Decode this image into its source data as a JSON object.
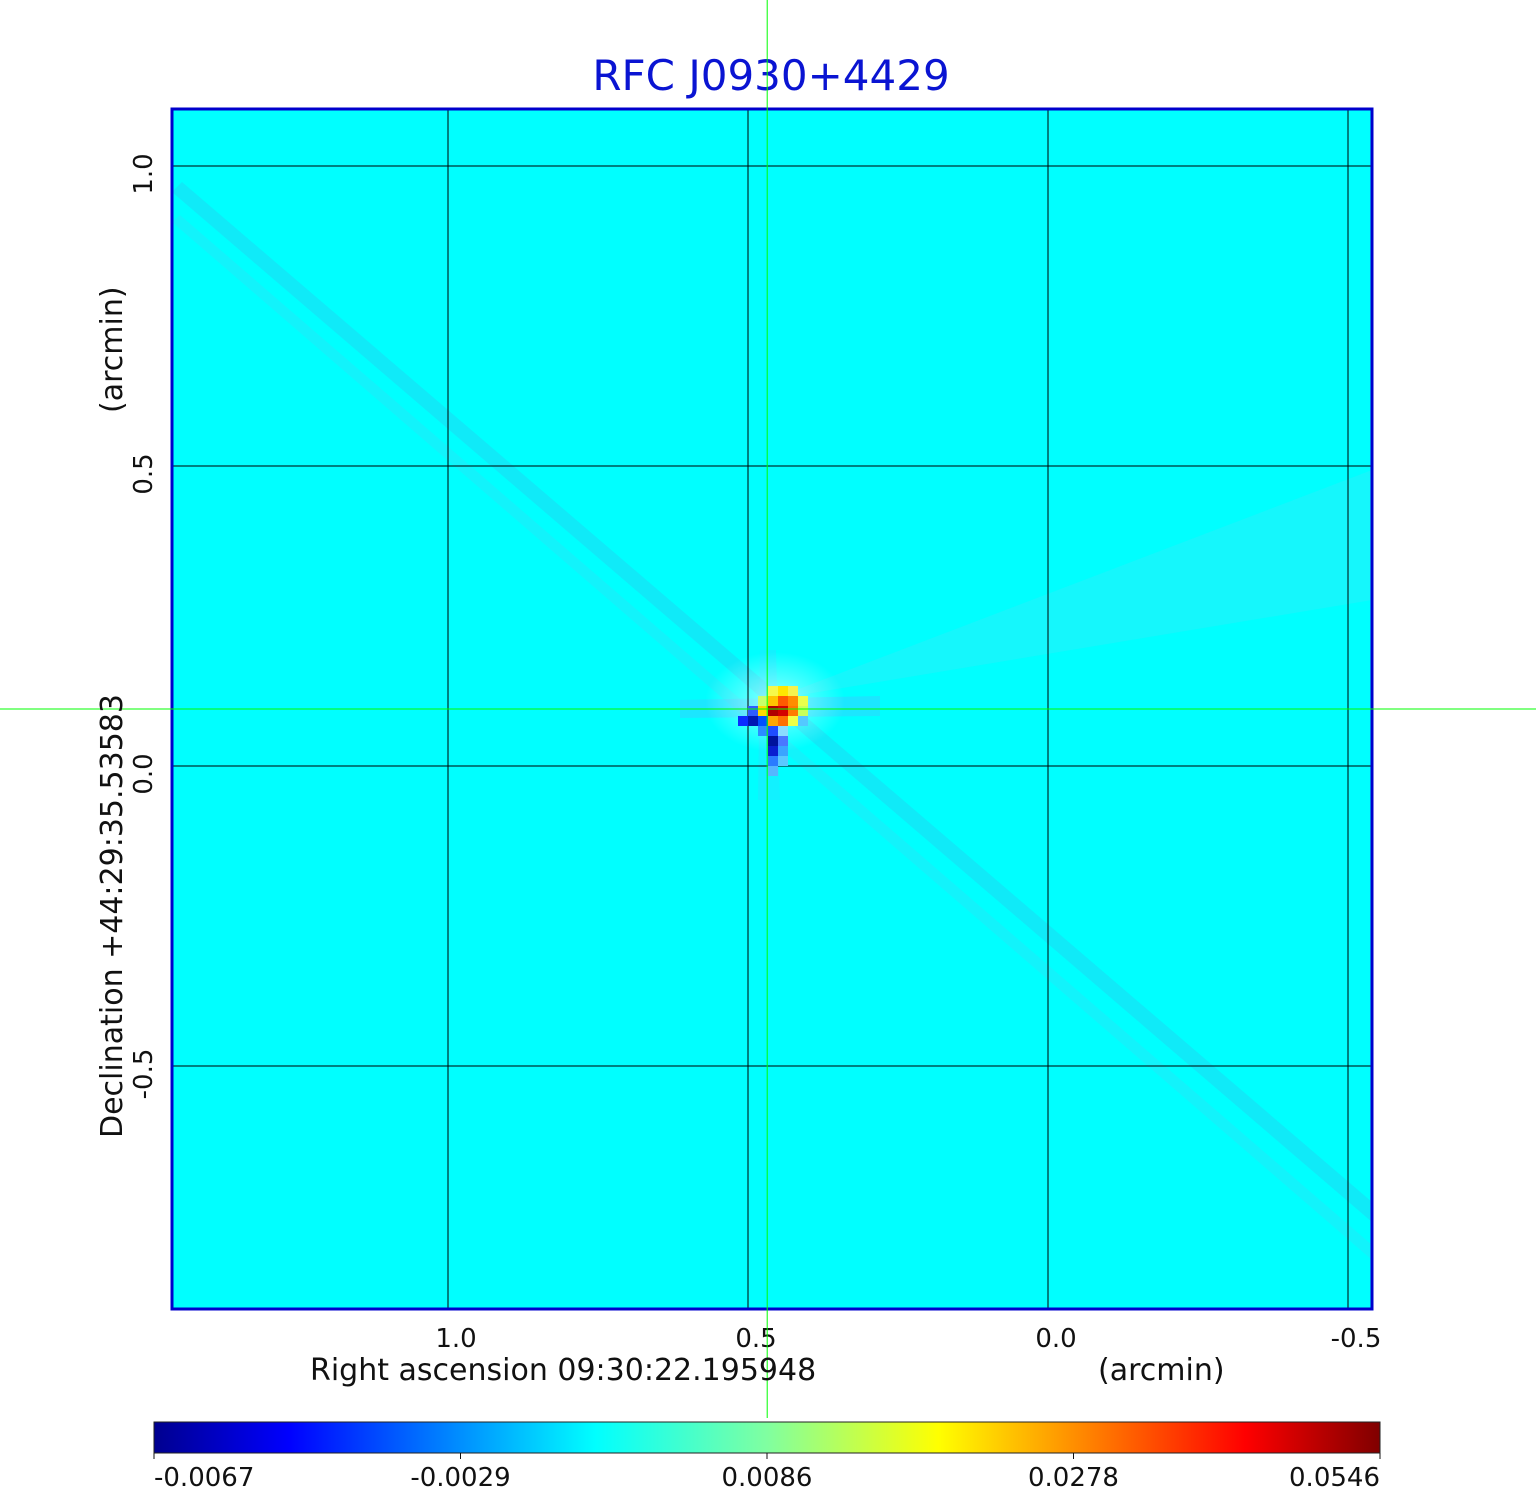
{
  "chart_data": {
    "type": "heatmap",
    "title": "RFC J0930+4429",
    "xlabel": "Right ascension  09:30:22.195948",
    "xunit": "(arcmin)",
    "ylabel": "Declination  +44:29:35.53583",
    "yunit": "(arcmin)",
    "x_ticks": [
      "1.0",
      "0.5",
      "0.0",
      "-0.5"
    ],
    "y_ticks": [
      "1.0",
      "0.5",
      "0.0",
      "-0.5"
    ],
    "x_tick_values": [
      1.0,
      0.5,
      0.0,
      -0.5
    ],
    "y_tick_values": [
      1.0,
      0.5,
      0.0,
      -0.5
    ],
    "xlim": [
      1.46,
      -0.54
    ],
    "ylim": [
      -0.905,
      1.095
    ],
    "grid": true,
    "crosshair": {
      "x": 0.468,
      "y": 0.095,
      "color": "#00ff00"
    },
    "source_peak": {
      "x": 0.45,
      "y": 0.1,
      "value": 0.0546
    },
    "colormap": "jet",
    "background_color": "#00ffff",
    "frame_color": "#0000cc",
    "colorbar": {
      "ticks": [
        "-0.0067",
        "-0.0029",
        "0.0086",
        "0.0278",
        "0.0546"
      ],
      "min": -0.0067,
      "max": 0.0546
    }
  }
}
